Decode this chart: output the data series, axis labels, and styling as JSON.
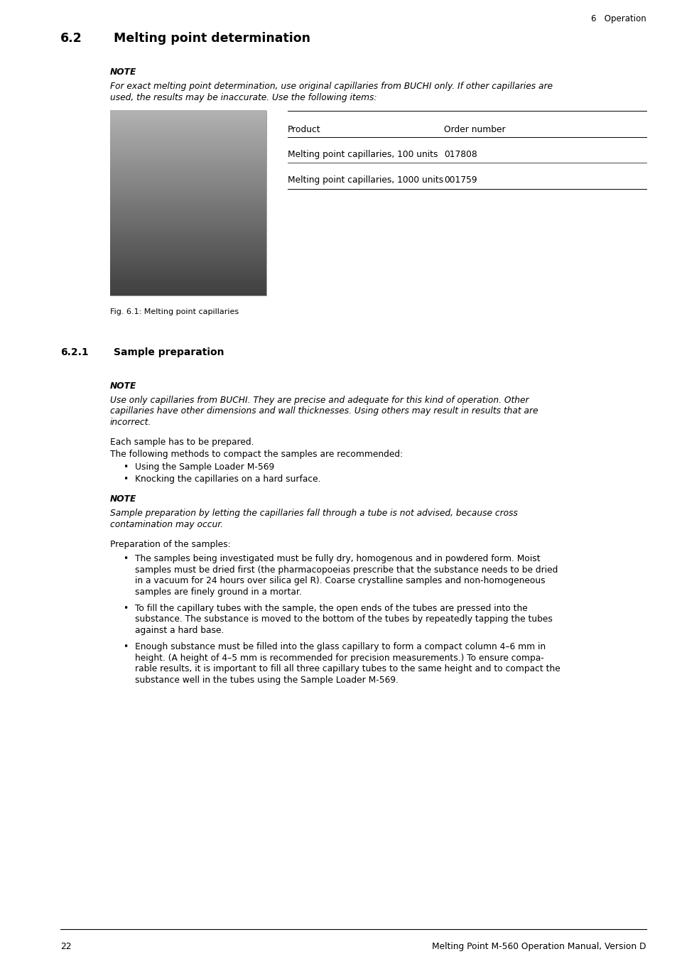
{
  "page_header_right": "6   Operation",
  "section_number": "6.2",
  "section_title": "Melting point determination",
  "note_label": "NOTE",
  "note_text_1a": "For exact melting point determination, use original capillaries from BUCHI only. If other capillaries are",
  "note_text_1b": "used, the results may be inaccurate. Use the following items:",
  "table_header": [
    "Product",
    "Order number"
  ],
  "table_rows": [
    [
      "Melting point capillaries, 100 units",
      "017808"
    ],
    [
      "Melting point capillaries, 1000 units",
      "001759"
    ]
  ],
  "fig_caption": "Fig. 6.1: Melting point capillaries",
  "subsection_number": "6.2.1",
  "subsection_title": "Sample preparation",
  "note_label_2": "NOTE",
  "note_text_2a": "Use only capillaries from BUCHI. They are precise and adequate for this kind of operation. Other",
  "note_text_2b": "capillaries have other dimensions and wall thicknesses. Using others may result in results that are",
  "note_text_2c": "incorrect.",
  "para_1": "Each sample has to be prepared.",
  "para_2": "The following methods to compact the samples are recommended:",
  "bullets_1": [
    "Using the Sample Loader M-569",
    "Knocking the capillaries on a hard surface."
  ],
  "note_label_3": "NOTE",
  "note_text_3a": "Sample preparation by letting the capillaries fall through a tube is not advised, because cross",
  "note_text_3b": "contamination may occur.",
  "para_3": "Preparation of the samples:",
  "bullet2_1": [
    "The samples being investigated must be fully dry, homogenous and in powdered form. Moist",
    "samples must be dried first (the pharmacopoeias prescribe that the substance needs to be dried",
    "in a vacuum for 24 hours over silica gel R). Coarse crystalline samples and non-homogeneous",
    "samples are finely ground in a mortar."
  ],
  "bullet2_2": [
    "To fill the capillary tubes with the sample, the open ends of the tubes are pressed into the",
    "substance. The substance is moved to the bottom of the tubes by repeatedly tapping the tubes",
    "against a hard base."
  ],
  "bullet2_3": [
    "Enough substance must be filled into the glass capillary to form a compact column 4–6 mm in",
    "height. (A height of 4–5 mm is recommended for precision measurements.) To ensure compa-",
    "rable results, it is important to fill all three capillary tubes to the same height and to compact the",
    "substance well in the tubes using the Sample Loader M-569."
  ],
  "footer_page": "22",
  "footer_text": "Melting Point M-560 Operation Manual, Version D",
  "bg_color": "#ffffff",
  "text_color": "#000000"
}
